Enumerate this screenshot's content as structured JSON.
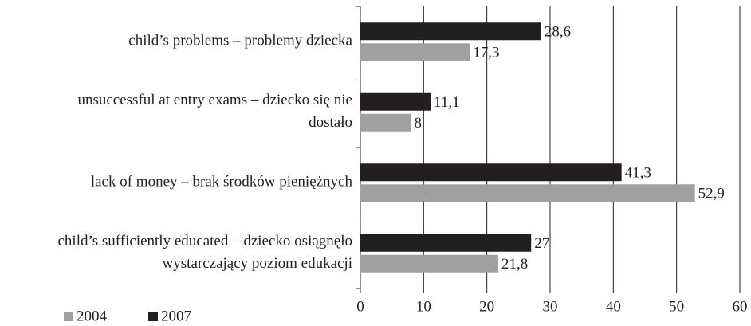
{
  "chart_data": {
    "type": "bar",
    "orientation": "horizontal",
    "categories": [
      [
        "child’s problems – problemy dziecka"
      ],
      [
        "unsuccessful at entry exams – dziecko się nie",
        "dostało"
      ],
      [
        "lack of money – brak środków pieniężnych"
      ],
      [
        "child’s sufficiently educated – dziecko osiągnęło",
        "wystarczający poziom edukacji"
      ]
    ],
    "series": [
      {
        "name": "2004",
        "color": "#a0a0a0",
        "values": [
          17.3,
          8,
          52.9,
          21.8
        ],
        "value_labels": [
          "17,3",
          "8",
          "52,9",
          "21,8"
        ]
      },
      {
        "name": "2007",
        "color": "#231f20",
        "values": [
          28.6,
          11.1,
          41.3,
          27
        ],
        "value_labels": [
          "28,6",
          "11,1",
          "41,3",
          "27"
        ]
      }
    ],
    "xlim": [
      0,
      60
    ],
    "xticks": [
      0,
      10,
      20,
      30,
      40,
      50,
      60
    ],
    "grid": true,
    "legend": "bottom-left"
  }
}
